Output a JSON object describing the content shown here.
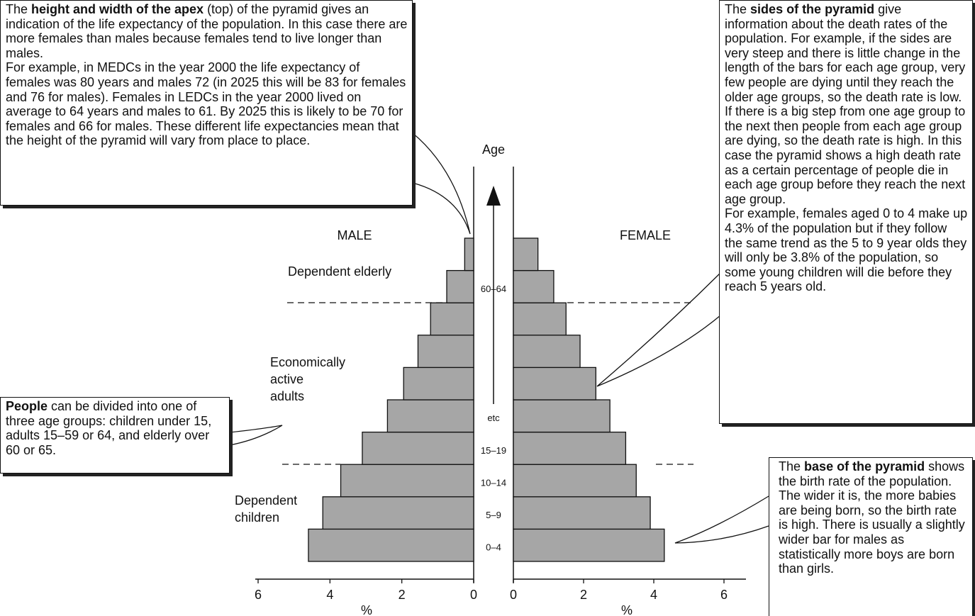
{
  "chart_data": {
    "type": "pyramid",
    "ylabel": "Age",
    "xlabel": "%",
    "categories": [
      "0–4",
      "5–9",
      "10–14",
      "15–19",
      "etc",
      null,
      null,
      null,
      "60–64",
      null
    ],
    "series": [
      {
        "name": "MALE",
        "color": "#a6a6a6",
        "values": [
          4.6,
          4.2,
          3.7,
          3.1,
          2.4,
          1.95,
          1.55,
          1.2,
          0.75,
          0.25
        ]
      },
      {
        "name": "FEMALE",
        "color": "#a6a6a6",
        "values": [
          4.3,
          3.9,
          3.5,
          3.2,
          2.75,
          2.35,
          1.9,
          1.5,
          1.15,
          0.7
        ]
      }
    ],
    "xlim": [
      0,
      6
    ],
    "xticks": [
      0,
      2,
      4,
      6
    ],
    "group_labels": {
      "elderly": [
        "Dependent elderly"
      ],
      "adults": [
        "Economically",
        "active",
        "adults"
      ],
      "children": [
        "Dependent",
        "children"
      ]
    },
    "annotations": {
      "apex": {
        "intro": "The",
        "bold": "height and width of the apex",
        "body": "(top) of the pyramid gives an indication of the life expectancy of the population. In this case there are more females than males because females tend to live longer than males.",
        "example": "For example, in MEDCs in the year 2000 the life expectancy of females was 80 years and males 72 (in 2025 this will be 83 for females and 76 for males). Females in LEDCs in the year 2000 lived on average to 64 years and males to 61. By 2025 this is likely to be 70 for females and 66 for males. These different life expectancies mean that the height of the pyramid will vary from place to place."
      },
      "sides": {
        "intro": "The",
        "bold": "sides of the pyramid",
        "body": "give information about the death rates of the population. For example, if the sides are very steep and there is little change in the length of the bars for each age group, very few people are dying until they reach the older age groups, so the death rate is low. If there is a big step from one age group to the next then people from each age group are dying, so the death rate is high. In this case the pyramid shows a high death rate as a certain percentage of people die in each age group before they reach the next age group.",
        "example": "For example, females aged 0 to 4 make up 4.3% of the population but if they follow the same trend as the 5 to 9 year olds they will only be 3.8% of the population, so some young children will die before they reach 5 years old."
      },
      "people": {
        "bold": "People",
        "body": "can be divided into one of three age groups: children under 15, adults 15–59 or 64, and elderly over 60 or 65."
      },
      "base": {
        "intro": "The",
        "bold": "base of the pyramid",
        "body": "shows the birth rate of the population. The wider it is, the more babies are being born, so the birth rate is high. There is usually a slightly wider bar for males as statistically more boys are born than girls."
      }
    }
  }
}
